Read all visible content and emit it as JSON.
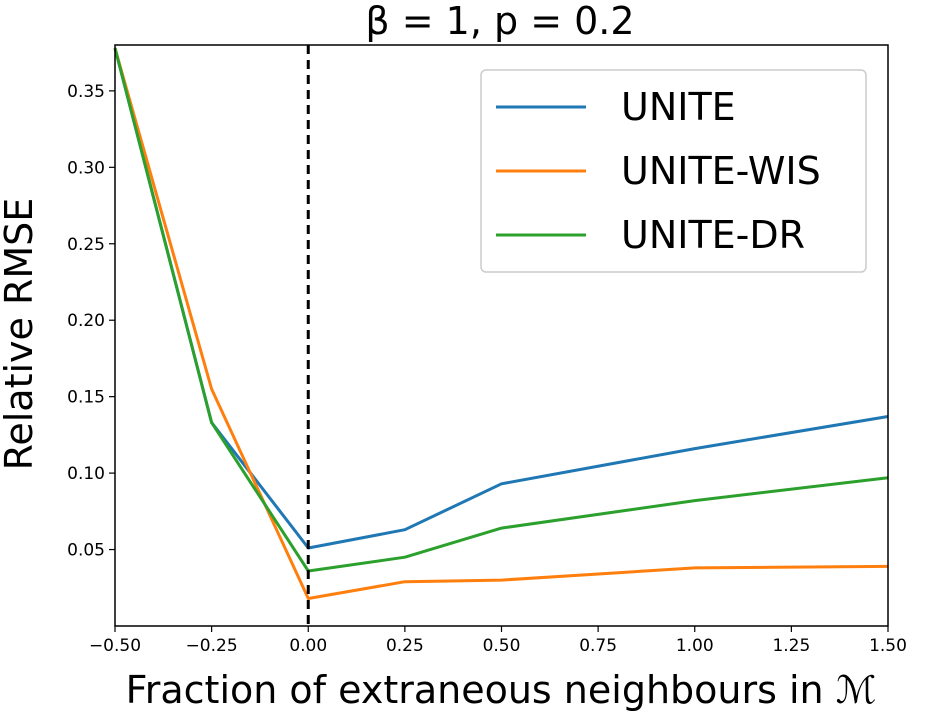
{
  "chart_data": {
    "type": "line",
    "title": "β = 1, p = 0.2",
    "xlabel": "Fraction of extraneous neighbours in ℳ",
    "ylabel": "Relative RMSE",
    "xlim": [
      -0.5,
      1.5
    ],
    "ylim": [
      0.0,
      0.38
    ],
    "xticks": [
      -0.5,
      -0.25,
      0.0,
      0.25,
      0.5,
      0.75,
      1.0,
      1.25,
      1.5
    ],
    "xtick_labels": [
      "−0.50",
      "−0.25",
      "0.00",
      "0.25",
      "0.50",
      "0.75",
      "1.00",
      "1.25",
      "1.50"
    ],
    "yticks": [
      0.05,
      0.1,
      0.15,
      0.2,
      0.25,
      0.3,
      0.35
    ],
    "ytick_labels": [
      "0.05",
      "0.10",
      "0.15",
      "0.20",
      "0.25",
      "0.30",
      "0.35"
    ],
    "vline": {
      "x": 0.0,
      "style": "dashed",
      "color": "#000000"
    },
    "grid": false,
    "legend_position": "top-right",
    "x": [
      -0.5,
      -0.25,
      0.0,
      0.25,
      0.5,
      1.0,
      1.5
    ],
    "series": [
      {
        "name": "UNITE",
        "color": "#1f77b4",
        "values": [
          0.378,
          0.133,
          0.051,
          0.063,
          0.093,
          0.116,
          0.137
        ]
      },
      {
        "name": "UNITE-WIS",
        "color": "#ff7f0e",
        "values": [
          0.378,
          0.155,
          0.018,
          0.029,
          0.03,
          0.038,
          0.039
        ]
      },
      {
        "name": "UNITE-DR",
        "color": "#2ca02c",
        "values": [
          0.378,
          0.133,
          0.036,
          0.045,
          0.064,
          0.082,
          0.097
        ]
      }
    ]
  }
}
